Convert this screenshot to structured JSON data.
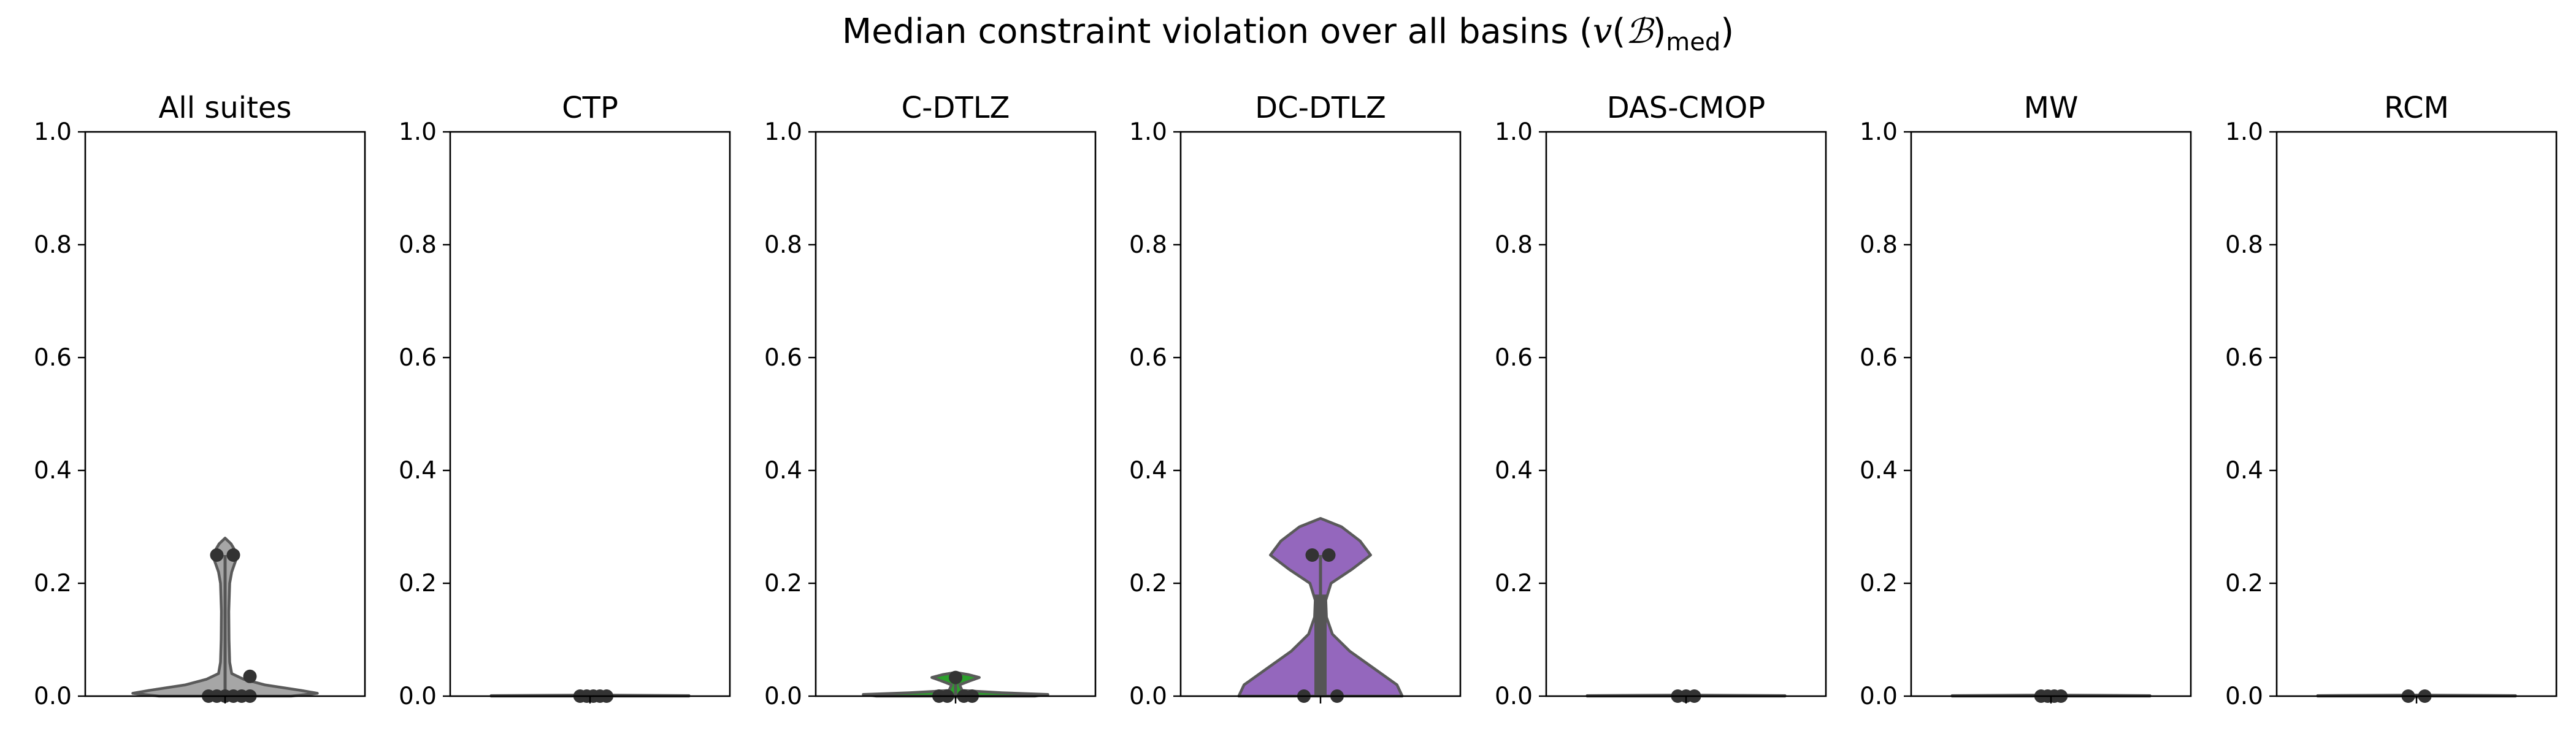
{
  "figure": {
    "title_prefix": "Median constraint violation over all basins (",
    "title_v": "v",
    "title_paren_open": "(",
    "title_B": "ℬ",
    "title_paren_close": ")",
    "title_sub": "med",
    "title_suffix": ")"
  },
  "chart_data": [
    {
      "type": "violin",
      "title": "All suites",
      "ylim": [
        0,
        1
      ],
      "yticks": [
        "0.0",
        "0.2",
        "0.4",
        "0.6",
        "0.8",
        "1.0"
      ],
      "color": "#a6a6a6",
      "violin_profile": [
        [
          0.0,
          0.5
        ],
        [
          0.005,
          0.7
        ],
        [
          0.01,
          0.58
        ],
        [
          0.02,
          0.3
        ],
        [
          0.03,
          0.14
        ],
        [
          0.04,
          0.05
        ],
        [
          0.06,
          0.035
        ],
        [
          0.1,
          0.03
        ],
        [
          0.15,
          0.028
        ],
        [
          0.2,
          0.035
        ],
        [
          0.22,
          0.05
        ],
        [
          0.24,
          0.08
        ],
        [
          0.26,
          0.07
        ],
        [
          0.27,
          0.045
        ],
        [
          0.28,
          0.0
        ]
      ],
      "box": {
        "q1": 0.0,
        "q3": 0.0,
        "whisker_low": 0.0,
        "whisker_high": 0.25
      },
      "points": [
        [
          -0.05,
          0.25
        ],
        [
          0.05,
          0.25
        ],
        [
          0.15,
          0.035
        ],
        [
          -0.1,
          0.0
        ],
        [
          -0.05,
          0.0
        ],
        [
          0.0,
          0.0
        ],
        [
          0.05,
          0.0
        ],
        [
          0.1,
          0.0
        ],
        [
          0.15,
          0.0
        ]
      ]
    },
    {
      "type": "violin",
      "title": "CTP",
      "ylim": [
        0,
        1
      ],
      "yticks": [
        "0.0",
        "0.2",
        "0.4",
        "0.6",
        "0.8",
        "1.0"
      ],
      "color": "#1f77b4",
      "violin_profile": [
        [
          0.0,
          0.75
        ],
        [
          0.001,
          0.75
        ],
        [
          0.002,
          0.0
        ]
      ],
      "box": {
        "q1": 0.0,
        "q3": 0.0,
        "whisker_low": 0.0,
        "whisker_high": 0.0
      },
      "points": [
        [
          -0.06,
          0.0
        ],
        [
          -0.02,
          0.0
        ],
        [
          0.02,
          0.0
        ],
        [
          0.06,
          0.0
        ],
        [
          0.1,
          0.0
        ]
      ]
    },
    {
      "type": "violin",
      "title": "C-DTLZ",
      "ylim": [
        0,
        1
      ],
      "yticks": [
        "0.0",
        "0.2",
        "0.4",
        "0.6",
        "0.8",
        "1.0"
      ],
      "color": "#2ca02c",
      "violin_profile": [
        [
          0.0,
          0.6
        ],
        [
          0.003,
          0.7
        ],
        [
          0.006,
          0.35
        ],
        [
          0.01,
          0.05
        ],
        [
          0.02,
          0.03
        ],
        [
          0.028,
          0.12
        ],
        [
          0.033,
          0.18
        ],
        [
          0.038,
          0.1
        ],
        [
          0.042,
          0.0
        ]
      ],
      "box": {
        "q1": 0.0,
        "q3": 0.0,
        "whisker_low": 0.0,
        "whisker_high": 0.033
      },
      "points": [
        [
          -0.1,
          0.0
        ],
        [
          -0.05,
          0.0
        ],
        [
          0.05,
          0.0
        ],
        [
          0.1,
          0.0
        ],
        [
          0.0,
          0.033
        ]
      ]
    },
    {
      "type": "violin",
      "title": "DC-DTLZ",
      "ylim": [
        0,
        1
      ],
      "yticks": [
        "0.0",
        "0.2",
        "0.4",
        "0.6",
        "0.8",
        "1.0"
      ],
      "color": "#9467bd",
      "violin_profile": [
        [
          0.0,
          0.62
        ],
        [
          0.02,
          0.58
        ],
        [
          0.05,
          0.4
        ],
        [
          0.08,
          0.22
        ],
        [
          0.11,
          0.09
        ],
        [
          0.14,
          0.045
        ],
        [
          0.17,
          0.04
        ],
        [
          0.2,
          0.08
        ],
        [
          0.225,
          0.24
        ],
        [
          0.25,
          0.38
        ],
        [
          0.275,
          0.3
        ],
        [
          0.3,
          0.16
        ],
        [
          0.315,
          0.0
        ]
      ],
      "box": {
        "q1": 0.0,
        "q3": 0.18,
        "whisker_low": 0.0,
        "whisker_high": 0.25
      },
      "points": [
        [
          -0.05,
          0.25
        ],
        [
          0.05,
          0.25
        ],
        [
          -0.1,
          0.0
        ],
        [
          0.1,
          0.0
        ]
      ]
    },
    {
      "type": "violin",
      "title": "DAS-CMOP",
      "ylim": [
        0,
        1
      ],
      "yticks": [
        "0.0",
        "0.2",
        "0.4",
        "0.6",
        "0.8",
        "1.0"
      ],
      "color": "#d62728",
      "violin_profile": [
        [
          0.0,
          0.75
        ],
        [
          0.001,
          0.75
        ],
        [
          0.002,
          0.0
        ]
      ],
      "box": {
        "q1": 0.0,
        "q3": 0.0,
        "whisker_low": 0.0,
        "whisker_high": 0.0
      },
      "points": [
        [
          -0.05,
          0.0
        ],
        [
          0.0,
          0.0
        ],
        [
          0.05,
          0.0
        ]
      ]
    },
    {
      "type": "violin",
      "title": "MW",
      "ylim": [
        0,
        1
      ],
      "yticks": [
        "0.0",
        "0.2",
        "0.4",
        "0.6",
        "0.8",
        "1.0"
      ],
      "color": "#ff7f0e",
      "violin_profile": [
        [
          0.0,
          0.75
        ],
        [
          0.001,
          0.75
        ],
        [
          0.002,
          0.0
        ]
      ],
      "box": {
        "q1": 0.0,
        "q3": 0.0,
        "whisker_low": 0.0,
        "whisker_high": 0.0
      },
      "points": [
        [
          -0.06,
          0.0
        ],
        [
          -0.02,
          0.0
        ],
        [
          0.02,
          0.0
        ],
        [
          0.06,
          0.0
        ]
      ]
    },
    {
      "type": "violin",
      "title": "RCM",
      "ylim": [
        0,
        1
      ],
      "yticks": [
        "0.0",
        "0.2",
        "0.4",
        "0.6",
        "0.8",
        "1.0"
      ],
      "color": "#8c564b",
      "violin_profile": [
        [
          0.0,
          0.75
        ],
        [
          0.001,
          0.75
        ],
        [
          0.002,
          0.0
        ]
      ],
      "box": {
        "q1": 0.0,
        "q3": 0.0,
        "whisker_low": 0.0,
        "whisker_high": 0.0
      },
      "points": [
        [
          -0.05,
          0.0
        ],
        [
          0.05,
          0.0
        ]
      ]
    }
  ]
}
